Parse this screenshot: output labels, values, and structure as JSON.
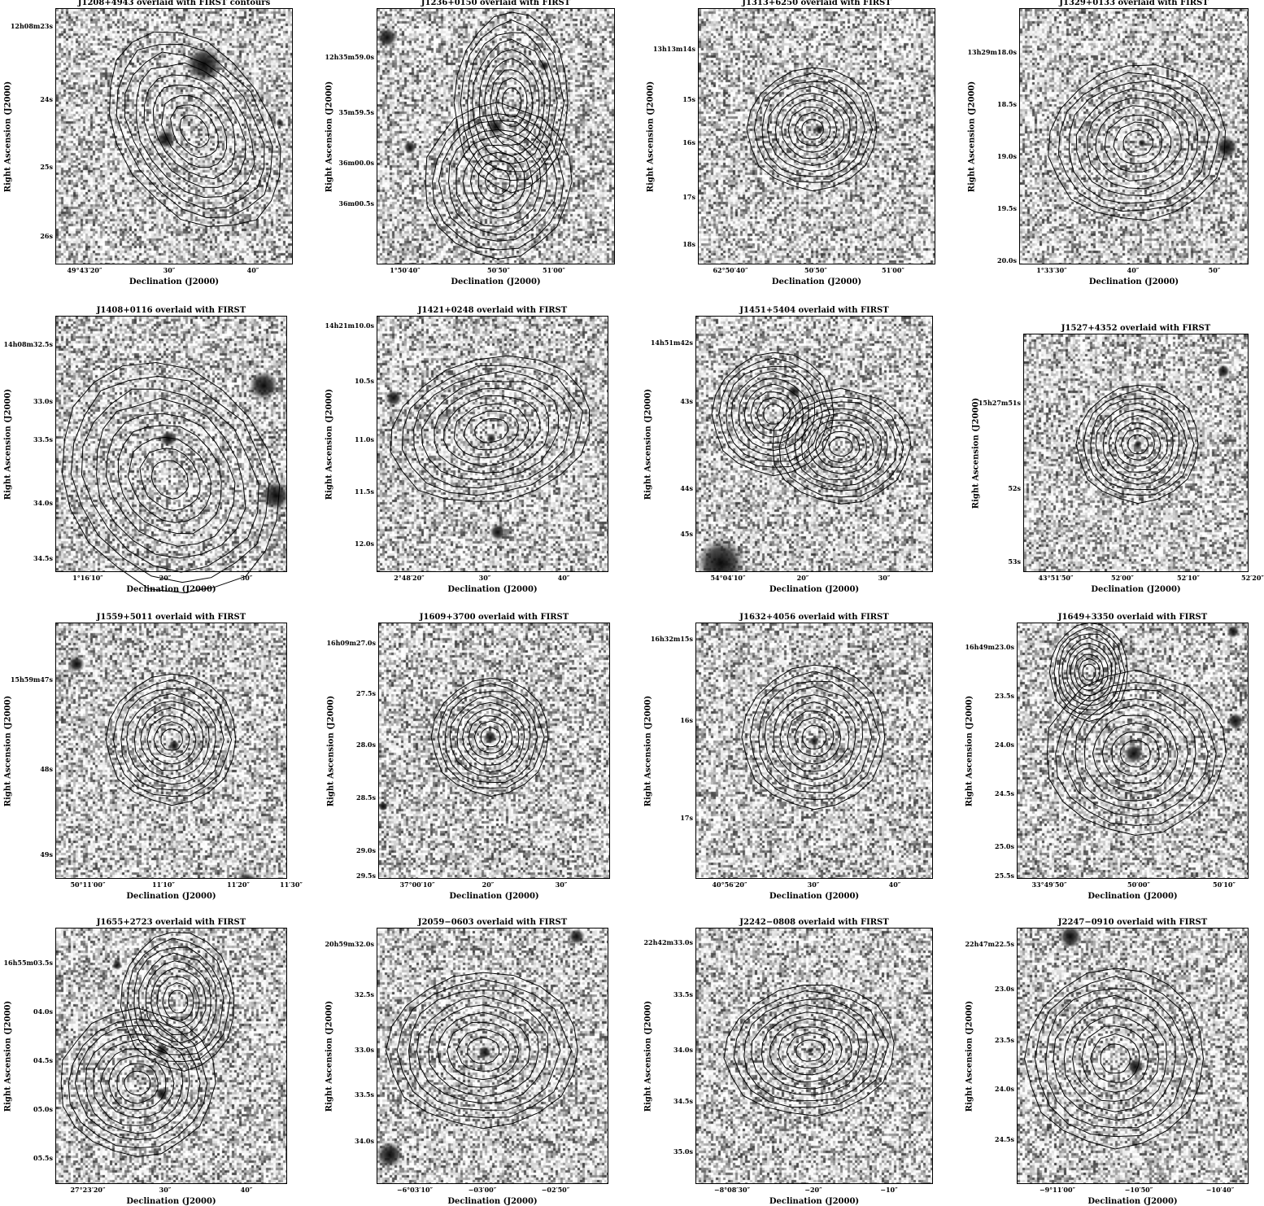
{
  "panels": [
    {
      "title": "J1208+4943 overlaid with FIRST contours",
      "xlabel": "Declination (J2000)",
      "ylabel": "Right Ascension (J2000)",
      "yticks": [
        "12h08m23s",
        "24s",
        "25s",
        "26s"
      ],
      "xticks": [
        "49°43′20″",
        "30″",
        "40″"
      ]
    },
    {
      "title": "J1236+0150 overlaid with FIRST",
      "xlabel": "Declination (J2000)",
      "ylabel": "Right Ascension (J2000)",
      "yticks": [
        "12h35m59.0s",
        "35m59.5s",
        "36m00.0s",
        "36m00.5s"
      ],
      "xticks": [
        "1°50′40″",
        "50′50″",
        "51′00″"
      ]
    },
    {
      "title": "J1313+6250 overlaid with FIRST",
      "xlabel": "Declination (J2000)",
      "ylabel": "Right Ascension (J2000)",
      "yticks": [
        "13h13m14s",
        "15s",
        "16s",
        "17s",
        "18s"
      ],
      "xticks": [
        "62°50′40″",
        "50′50″",
        "51′00″"
      ]
    },
    {
      "title": "J1329+0133 overlaid with FIRST",
      "xlabel": "Declination (J2000)",
      "ylabel": "Right Ascension (J2000)",
      "yticks": [
        "13h29m18.0s",
        "18.5s",
        "19.0s",
        "19.5s",
        "20.0s"
      ],
      "xticks": [
        "1°33′30″",
        "40″",
        "50″"
      ]
    },
    {
      "title": "J1408+0116 overlaid with FIRST",
      "xlabel": "Declination (J2000)",
      "ylabel": "Right Ascension (J2000)",
      "yticks": [
        "14h08m32.5s",
        "33.0s",
        "33.5s",
        "34.0s",
        "34.5s"
      ],
      "xticks": [
        "1°16′10″",
        "20″",
        "30″"
      ]
    },
    {
      "title": "J1421+0248 overlaid with FIRST",
      "xlabel": "Declination (J2000)",
      "ylabel": "Right Ascension (J2000)",
      "yticks": [
        "14h21m10.0s",
        "10.5s",
        "11.0s",
        "11.5s",
        "12.0s"
      ],
      "xticks": [
        "2°48′20″",
        "30″",
        "40″"
      ]
    },
    {
      "title": "J1451+5404 overlaid with FIRST",
      "xlabel": "Declination (J2000)",
      "ylabel": "Right Ascension (J2000)",
      "yticks": [
        "14h51m42s",
        "43s",
        "44s",
        "45s"
      ],
      "xticks": [
        "54°04′10″",
        "20″",
        "30″"
      ]
    },
    {
      "title": "J1527+4352 overlaid with FIRST",
      "xlabel": "Declination (J2000)",
      "ylabel": "Right Ascension (J2000)",
      "yticks": [
        "15h27m51s",
        "52s",
        "53s"
      ],
      "xticks": [
        "43°51′50″",
        "52′00″",
        "52′10″",
        "52′20″"
      ]
    },
    {
      "title": "J1559+5011 overlaid with FIRST",
      "xlabel": "Declination (J2000)",
      "ylabel": "Right Ascension (J2000)",
      "yticks": [
        "15h59m47s",
        "48s",
        "49s"
      ],
      "xticks": [
        "50°11′00″",
        "11′10″",
        "11′20″",
        "11′30″"
      ]
    },
    {
      "title": "J1609+3700 overlaid with FIRST",
      "xlabel": "Declination (J2000)",
      "ylabel": "Right Ascension (J2000)",
      "yticks": [
        "16h09m27.0s",
        "27.5s",
        "28.0s",
        "28.5s",
        "29.0s",
        "29.5s"
      ],
      "xticks": [
        "37°00′10″",
        "20″",
        "30″"
      ]
    },
    {
      "title": "J1632+4056 overlaid with FIRST",
      "xlabel": "Declination (J2000)",
      "ylabel": "Right Ascension (J2000)",
      "yticks": [
        "16h32m15s",
        "16s",
        "17s"
      ],
      "xticks": [
        "40°56′20″",
        "30″",
        "40″"
      ]
    },
    {
      "title": "J1649+3350 overlaid with FIRST",
      "xlabel": "Declination (J2000)",
      "ylabel": "Right Ascension (J2000)",
      "yticks": [
        "16h49m23.0s",
        "23.5s",
        "24.0s",
        "24.5s",
        "25.0s",
        "25.5s"
      ],
      "xticks": [
        "33°49′50″",
        "50′00″",
        "50′10″"
      ]
    },
    {
      "title": "J1655+2723 overlaid with FIRST",
      "xlabel": "Declination (J2000)",
      "ylabel": "Right Ascension (J2000)",
      "yticks": [
        "16h55m03.5s",
        "04.0s",
        "04.5s",
        "05.0s",
        "05.5s"
      ],
      "xticks": [
        "27°23′20″",
        "30″",
        "40″"
      ]
    },
    {
      "title": "J2059−0603 overlaid with FIRST",
      "xlabel": "Declination (J2000)",
      "ylabel": "Right Ascension (J2000)",
      "yticks": [
        "20h59m32.0s",
        "32.5s",
        "33.0s",
        "33.5s",
        "34.0s"
      ],
      "xticks": [
        "−6°03′10″",
        "−03′00″",
        "−02′50″"
      ]
    },
    {
      "title": "J2242−0808 overlaid with FIRST",
      "xlabel": "Declination (J2000)",
      "ylabel": "Right Ascension (J2000)",
      "yticks": [
        "22h42m33.0s",
        "33.5s",
        "34.0s",
        "34.5s",
        "35.0s"
      ],
      "xticks": [
        "−8°08′30″",
        "−20″",
        "−10″"
      ]
    },
    {
      "title": "J2247−0910 overlaid with FIRST",
      "xlabel": "Declination (J2000)",
      "ylabel": "Right Ascension (J2000)",
      "yticks": [
        "22h47m22.5s",
        "23.0s",
        "23.5s",
        "24.0s",
        "24.5s"
      ],
      "xticks": [
        "−9°11′00″",
        "−10′50″",
        "−10′40″"
      ]
    }
  ]
}
